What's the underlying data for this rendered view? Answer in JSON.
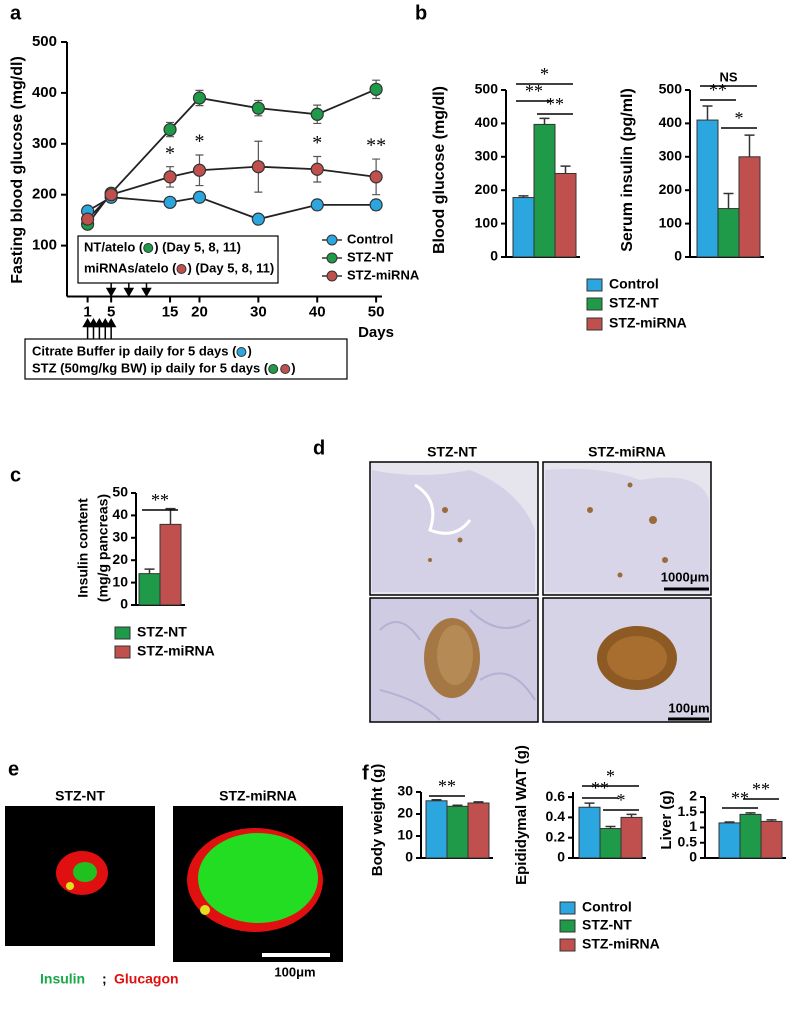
{
  "panel_labels": [
    "a",
    "b",
    "c",
    "d",
    "e",
    "f"
  ],
  "chart_data": [
    {
      "type": "line",
      "ylabel": "Fasting blood glucose (mg/dl)",
      "xlabel": "Days",
      "x": [
        1,
        5,
        15,
        20,
        30,
        40,
        50
      ],
      "series": [
        {
          "name": "Control",
          "color": "#2ba6de",
          "values": [
            168,
            195,
            185,
            195,
            152,
            180,
            180
          ],
          "errors": [
            5,
            10,
            8,
            10,
            5,
            10,
            10
          ]
        },
        {
          "name": "STZ-NT",
          "color": "#1e9a48",
          "values": [
            142,
            203,
            328,
            390,
            370,
            358,
            407
          ],
          "errors": [
            5,
            8,
            14,
            15,
            15,
            18,
            18
          ]
        },
        {
          "name": "STZ-miRNA",
          "color": "#c0504d",
          "values": [
            152,
            200,
            235,
            248,
            255,
            250,
            235
          ],
          "errors": [
            6,
            8,
            20,
            30,
            50,
            25,
            35
          ]
        }
      ],
      "xlim": [
        -2.5,
        51
      ],
      "ylim": [
        0,
        500
      ],
      "xticks": [
        1,
        5,
        15,
        20,
        30,
        40,
        50
      ],
      "yticks": [
        100,
        200,
        300,
        400,
        500
      ],
      "legend": "lower right",
      "annotations": [
        {
          "x": 15,
          "text": "*"
        },
        {
          "x": 20,
          "text": "*"
        },
        {
          "x": 40,
          "text": "*"
        },
        {
          "x": 50,
          "text": "**"
        }
      ],
      "notes": [
        {
          "before": "NT/atelo (",
          "colors": [
            "#1e9a48"
          ],
          "after": ") (Day 5, 8, 11)"
        },
        {
          "before": "miRNAs/atelo (",
          "colors": [
            "#c0504d"
          ],
          "after": ") (Day 5, 8, 11)"
        }
      ],
      "down_arrows": [
        5,
        8,
        11
      ],
      "up_arrows": [
        1,
        2,
        3,
        4,
        5
      ],
      "protocol": [
        {
          "before": "Citrate Buffer ip daily for 5 days (",
          "colors": [
            "#2ba6de"
          ],
          "after": ")"
        },
        {
          "before": "STZ (50mg/kg BW) ip daily for 5 days (",
          "colors": [
            "#1e9a48",
            "#c0504d"
          ],
          "after": ")"
        }
      ]
    },
    {
      "type": "bar",
      "ylabel": "Blood glucose (mg/dl)",
      "series": [
        {
          "name": "Control",
          "color": "#2ba6de",
          "values": [
            178
          ],
          "errors": [
            5
          ]
        },
        {
          "name": "STZ-NT",
          "color": "#1e9a48",
          "values": [
            397
          ],
          "errors": [
            18
          ]
        },
        {
          "name": "STZ-miRNA",
          "color": "#c0504d",
          "values": [
            250
          ],
          "errors": [
            22
          ]
        }
      ],
      "ylim": [
        0,
        500
      ],
      "yticks": [
        0,
        100,
        200,
        300,
        400,
        500
      ],
      "annotations": [
        "**",
        "**",
        "*"
      ],
      "legend": "below"
    },
    {
      "type": "bar",
      "ylabel": "Serum insulin (pg/ml)",
      "series": [
        {
          "color": "#2ba6de",
          "values": [
            410
          ],
          "errors": [
            42
          ]
        },
        {
          "color": "#1e9a48",
          "values": [
            145
          ],
          "errors": [
            45
          ]
        },
        {
          "color": "#c0504d",
          "values": [
            300
          ],
          "errors": [
            65
          ]
        }
      ],
      "ylim": [
        0,
        500
      ],
      "yticks": [
        0,
        100,
        200,
        300,
        400,
        500
      ],
      "annotations": [
        "NS",
        "**",
        "*"
      ]
    },
    {
      "type": "bar",
      "ylabel": [
        "Insulin content",
        "(mg/g pancreas)"
      ],
      "series": [
        {
          "name": "STZ-NT",
          "color": "#1e9a48",
          "values": [
            14
          ],
          "errors": [
            2
          ]
        },
        {
          "name": "STZ-miRNA",
          "color": "#c0504d",
          "values": [
            36
          ],
          "errors": [
            7
          ]
        }
      ],
      "ylim": [
        0,
        50
      ],
      "yticks": [
        0,
        10,
        20,
        30,
        40,
        50
      ],
      "annotations": [
        "**"
      ],
      "legend": "below"
    },
    {
      "type": "bar",
      "ylabel": "Body weight (g)",
      "series": [
        {
          "color": "#2ba6de",
          "values": [
            26
          ],
          "errors": [
            0.5
          ]
        },
        {
          "color": "#1e9a48",
          "values": [
            23.5
          ],
          "errors": [
            0.5
          ]
        },
        {
          "color": "#c0504d",
          "values": [
            25
          ],
          "errors": [
            0.5
          ]
        }
      ],
      "ylim": [
        0,
        30
      ],
      "yticks": [
        0,
        10,
        20,
        30
      ],
      "annotations": [
        "**"
      ]
    },
    {
      "type": "bar",
      "ylabel": "Epididymal WAT (g)",
      "series": [
        {
          "name": "Control",
          "color": "#2ba6de",
          "values": [
            0.5
          ],
          "errors": [
            0.04
          ]
        },
        {
          "name": "STZ-NT",
          "color": "#1e9a48",
          "values": [
            0.29
          ],
          "errors": [
            0.02
          ]
        },
        {
          "name": "STZ-miRNA",
          "color": "#c0504d",
          "values": [
            0.4
          ],
          "errors": [
            0.03
          ]
        }
      ],
      "ylim": [
        0,
        0.65
      ],
      "yticks": [
        0,
        0.2,
        0.4,
        0.6
      ],
      "annotations": [
        "*",
        "**",
        "*"
      ],
      "legend": "below"
    },
    {
      "type": "bar",
      "ylabel": "Liver (g)",
      "series": [
        {
          "color": "#2ba6de",
          "values": [
            1.15
          ],
          "errors": [
            0.03
          ]
        },
        {
          "color": "#1e9a48",
          "values": [
            1.43
          ],
          "errors": [
            0.05
          ]
        },
        {
          "color": "#c0504d",
          "values": [
            1.2
          ],
          "errors": [
            0.05
          ]
        }
      ],
      "ylim": [
        0,
        2
      ],
      "yticks": [
        0,
        0.5,
        1,
        1.5,
        2
      ],
      "annotations": [
        "**",
        "**"
      ]
    }
  ],
  "images": {
    "d": {
      "titles": [
        "STZ-NT",
        "STZ-miRNA"
      ],
      "scale_bars": [
        "1000μm",
        "100μm"
      ]
    },
    "e": {
      "titles": [
        "STZ-NT",
        "STZ-miRNA"
      ],
      "scale_bar": "100μm",
      "caption": {
        "insulin": "Insulin",
        "separator": ";",
        "glucagon": "Glucagon"
      }
    }
  }
}
